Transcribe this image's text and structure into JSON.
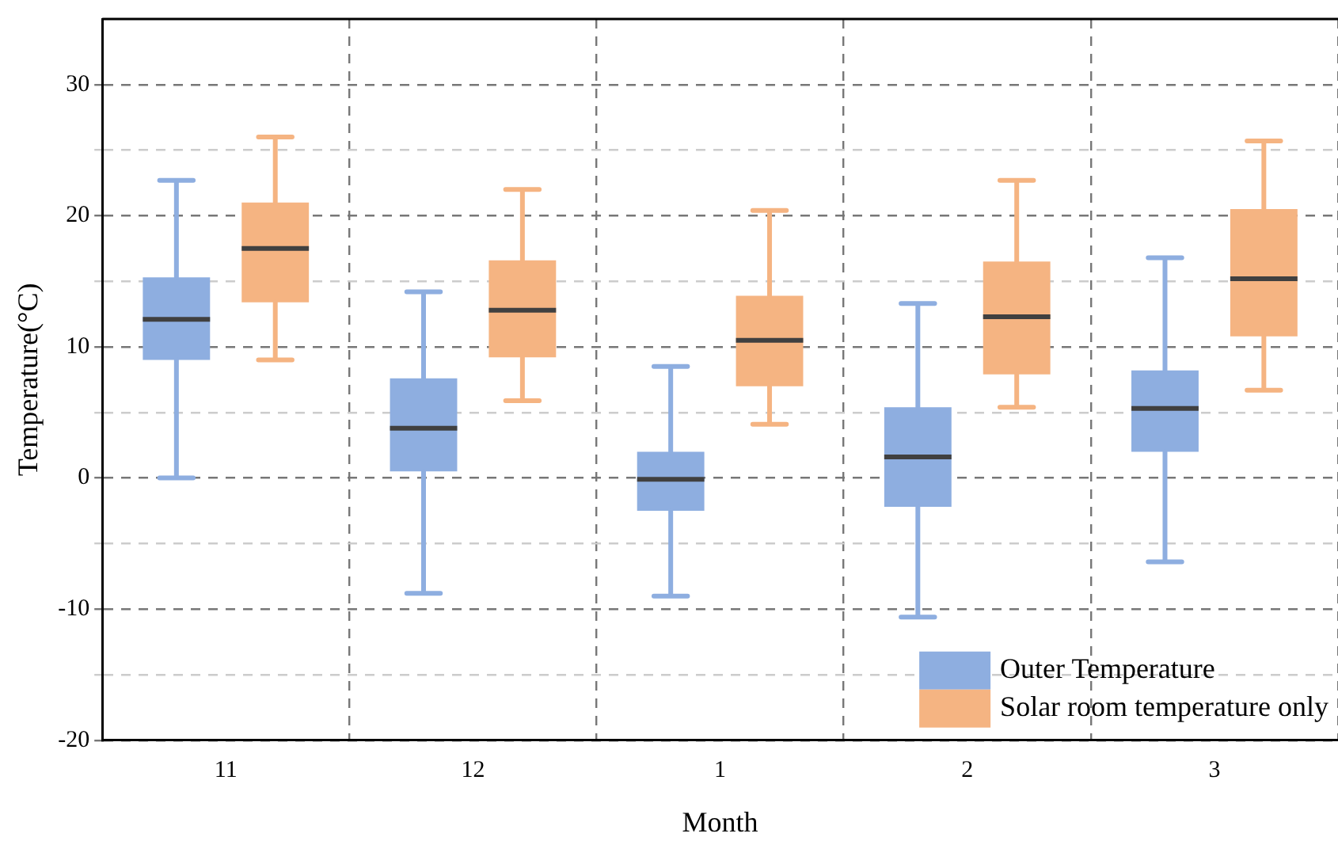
{
  "chart_data": {
    "type": "box",
    "xlabel": "Month",
    "ylabel": "Temperature(°C)",
    "categories": [
      "11",
      "12",
      "1",
      "2",
      "3"
    ],
    "series": [
      {
        "name": "Outer Temperature",
        "color": "#8eaee0",
        "boxes": [
          {
            "low": 0,
            "q1": 9.0,
            "median": 12.1,
            "q3": 15.3,
            "high": 22.7
          },
          {
            "low": -8.8,
            "q1": 0.5,
            "median": 3.8,
            "q3": 7.6,
            "high": 14.2
          },
          {
            "low": -9.0,
            "q1": -2.5,
            "median": -0.1,
            "q3": 2.0,
            "high": 8.5
          },
          {
            "low": -10.6,
            "q1": -2.2,
            "median": 1.6,
            "q3": 5.4,
            "high": 13.3
          },
          {
            "low": -6.4,
            "q1": 2.0,
            "median": 5.3,
            "q3": 8.2,
            "high": 16.8
          }
        ]
      },
      {
        "name": "Solar room temperature only",
        "color": "#f5b482",
        "boxes": [
          {
            "low": 9.0,
            "q1": 13.4,
            "median": 17.5,
            "q3": 21.0,
            "high": 26.0
          },
          {
            "low": 5.9,
            "q1": 9.2,
            "median": 12.8,
            "q3": 16.6,
            "high": 22.0
          },
          {
            "low": 4.1,
            "q1": 7.0,
            "median": 10.5,
            "q3": 13.9,
            "high": 20.4
          },
          {
            "low": 5.4,
            "q1": 7.9,
            "median": 12.3,
            "q3": 16.5,
            "high": 22.7
          },
          {
            "low": 6.7,
            "q1": 10.8,
            "median": 15.2,
            "q3": 20.5,
            "high": 25.7
          }
        ]
      }
    ],
    "ylim": [
      -20,
      35
    ],
    "yticks": [
      -20,
      {
        "value": -15,
        "label": null
      },
      -10,
      {
        "value": -5,
        "label": null
      },
      0,
      {
        "value": 5,
        "label": null
      },
      10,
      {
        "value": 15,
        "label": null
      },
      20,
      {
        "value": 25,
        "label": null
      },
      30
    ],
    "grid": true,
    "legend": "bottom right"
  }
}
